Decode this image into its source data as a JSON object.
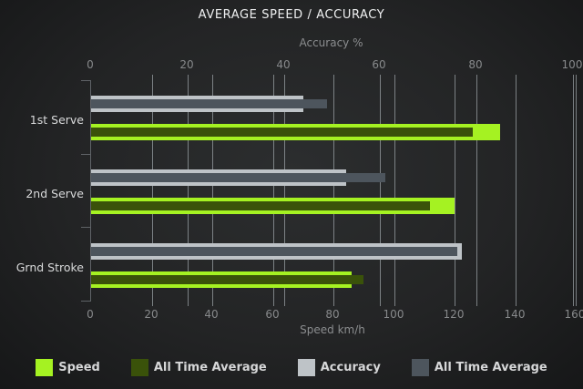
{
  "title": "AVERAGE SPEED / ACCURACY",
  "chart_data": {
    "type": "bar",
    "orientation": "horizontal",
    "categories": [
      "1st Serve",
      "2nd Serve",
      "Grnd Stroke"
    ],
    "series": [
      {
        "name": "Speed",
        "axis": "bottom",
        "color": "#a5f222",
        "values": [
          135,
          120,
          86
        ]
      },
      {
        "name": "All Time Average",
        "axis": "bottom",
        "color": "#3a520a",
        "values": [
          126,
          112,
          90
        ]
      },
      {
        "name": "Accuracy",
        "axis": "top",
        "color": "#bec3c7",
        "values": [
          44,
          53,
          77
        ]
      },
      {
        "name": "All Time Average",
        "axis": "top",
        "color": "#4d555d",
        "values": [
          49,
          61,
          76
        ]
      }
    ],
    "top_axis": {
      "label": "Accuracy %",
      "ticks": [
        0,
        20,
        40,
        60,
        80,
        100
      ],
      "max": 100
    },
    "bottom_axis": {
      "label": "Speed km/h",
      "ticks": [
        0,
        20,
        40,
        60,
        80,
        100,
        120,
        140,
        160
      ],
      "max": 160
    },
    "grid": true,
    "legend_position": "bottom",
    "background": "dark"
  },
  "colors": {
    "speed": "#a5f222",
    "speed_all_time_average": "#3a520a",
    "accuracy": "#bec3c7",
    "accuracy_all_time_average": "#4d555d",
    "grid": "#9aa0a4",
    "text_bright": "#eff0f1",
    "text_muted": "#87898b"
  },
  "legend": {
    "items": [
      "Speed",
      "All Time Average",
      "Accuracy",
      "All Time Average"
    ]
  }
}
